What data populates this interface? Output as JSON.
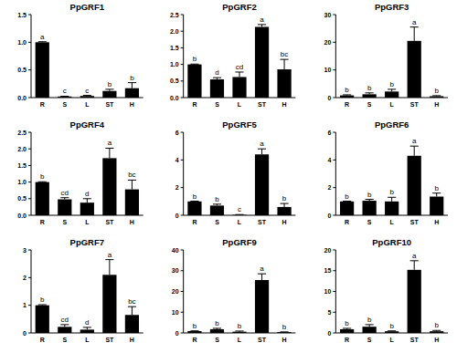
{
  "chart_data": [
    {
      "type": "bar",
      "title": "PpGRF1",
      "categories": [
        "R",
        "S",
        "L",
        "ST",
        "H"
      ],
      "values": [
        1.0,
        0.02,
        0.03,
        0.12,
        0.17
      ],
      "errors": [
        0.01,
        0.005,
        0.01,
        0.03,
        0.1
      ],
      "letters": [
        "a",
        "c",
        "c",
        "b",
        "b"
      ],
      "color": "#000000",
      "ylim": [
        0,
        1.5
      ],
      "yticks": [
        {
          "value": 0,
          "label": "0.0"
        },
        {
          "value": 0.5,
          "label": "0.5"
        },
        {
          "value": 1,
          "label": "1.0"
        },
        {
          "value": 1.5,
          "label": "1.5"
        }
      ]
    },
    {
      "type": "bar",
      "title": "PpGRF2",
      "categories": [
        "R",
        "S",
        "L",
        "ST",
        "H"
      ],
      "values": [
        1.0,
        0.55,
        0.62,
        2.13,
        0.85
      ],
      "errors": [
        0.01,
        0.05,
        0.15,
        0.07,
        0.3
      ],
      "letters": [
        "b",
        "d",
        "cd",
        "a",
        "bc"
      ],
      "color": "#000000",
      "ylim": [
        0,
        2.5
      ],
      "yticks": [
        {
          "value": 0,
          "label": "0.0"
        },
        {
          "value": 0.5,
          "label": "0.5"
        },
        {
          "value": 1,
          "label": "1.0"
        },
        {
          "value": 1.5,
          "label": "1.5"
        },
        {
          "value": 2,
          "label": "2.0"
        },
        {
          "value": 2.5,
          "label": "2.5"
        }
      ]
    },
    {
      "type": "bar",
      "title": "PpGRF3",
      "categories": [
        "R",
        "S",
        "L",
        "ST",
        "H"
      ],
      "values": [
        0.8,
        1.2,
        2.2,
        20.5,
        0.5
      ],
      "errors": [
        0.2,
        0.5,
        0.8,
        5,
        0.2
      ],
      "letters": [
        "b",
        "b",
        "b",
        "a",
        "b"
      ],
      "color": "#000000",
      "ylim": [
        0,
        30
      ],
      "yticks": [
        0,
        10,
        20,
        30
      ]
    },
    {
      "type": "bar",
      "title": "PpGRF4",
      "categories": [
        "R",
        "S",
        "L",
        "ST",
        "H"
      ],
      "values": [
        1.0,
        0.48,
        0.38,
        1.72,
        0.78
      ],
      "errors": [
        0.01,
        0.05,
        0.12,
        0.3,
        0.28
      ],
      "letters": [
        "b",
        "cd",
        "d",
        "a",
        "bc"
      ],
      "color": "#000000",
      "ylim": [
        0,
        2.5
      ],
      "yticks": [
        {
          "value": 0,
          "label": "0.0"
        },
        {
          "value": 0.5,
          "label": "0.5"
        },
        {
          "value": 1,
          "label": "1.0"
        },
        {
          "value": 1.5,
          "label": "1.5"
        },
        {
          "value": 2,
          "label": "2.0"
        },
        {
          "value": 2.5,
          "label": "2.5"
        }
      ]
    },
    {
      "type": "bar",
      "title": "PpGRF5",
      "categories": [
        "R",
        "S",
        "L",
        "ST",
        "H"
      ],
      "values": [
        1.0,
        0.7,
        0.03,
        4.4,
        0.6
      ],
      "errors": [
        0.02,
        0.1,
        0.02,
        0.4,
        0.25
      ],
      "letters": [
        "b",
        "b",
        "c",
        "a",
        "b"
      ],
      "color": "#000000",
      "ylim": [
        0,
        6
      ],
      "yticks": [
        0,
        2,
        4,
        6
      ]
    },
    {
      "type": "bar",
      "title": "PpGRF6",
      "categories": [
        "R",
        "S",
        "L",
        "ST",
        "H"
      ],
      "values": [
        1.0,
        1.05,
        1.0,
        4.3,
        1.35
      ],
      "errors": [
        0.02,
        0.1,
        0.3,
        0.7,
        0.25
      ],
      "letters": [
        "b",
        "b",
        "b",
        "a",
        "b"
      ],
      "color": "#000000",
      "ylim": [
        0,
        6
      ],
      "yticks": [
        0,
        2,
        4,
        6
      ]
    },
    {
      "type": "bar",
      "title": "PpGRF7",
      "categories": [
        "R",
        "S",
        "L",
        "ST",
        "H"
      ],
      "values": [
        1.0,
        0.22,
        0.12,
        2.1,
        0.65
      ],
      "errors": [
        0.02,
        0.08,
        0.08,
        0.55,
        0.3
      ],
      "letters": [
        "b",
        "cd",
        "d",
        "a",
        "bc"
      ],
      "color": "#000000",
      "ylim": [
        0,
        3
      ],
      "yticks": [
        0,
        1,
        2,
        3
      ]
    },
    {
      "type": "bar",
      "title": "PpGRF9",
      "categories": [
        "R",
        "S",
        "L",
        "ST",
        "H"
      ],
      "values": [
        0.9,
        1.8,
        0.6,
        25.5,
        0.4
      ],
      "errors": [
        0.1,
        0.4,
        0.3,
        3,
        0.1
      ],
      "letters": [
        "b",
        "b",
        "b",
        "a",
        "b"
      ],
      "color": "#000000",
      "ylim": [
        0,
        40
      ],
      "yticks": [
        0,
        10,
        20,
        30,
        40
      ]
    },
    {
      "type": "bar",
      "title": "PpGRF10",
      "categories": [
        "R",
        "S",
        "L",
        "ST",
        "H"
      ],
      "values": [
        0.9,
        1.5,
        0.4,
        15.2,
        0.4
      ],
      "errors": [
        0.2,
        0.5,
        0.1,
        2.2,
        0.2
      ],
      "letters": [
        "b",
        "b",
        "b",
        "a",
        "b"
      ],
      "color": "#000000",
      "ylim": [
        0,
        20
      ],
      "yticks": [
        0,
        5,
        10,
        15,
        20
      ]
    }
  ]
}
